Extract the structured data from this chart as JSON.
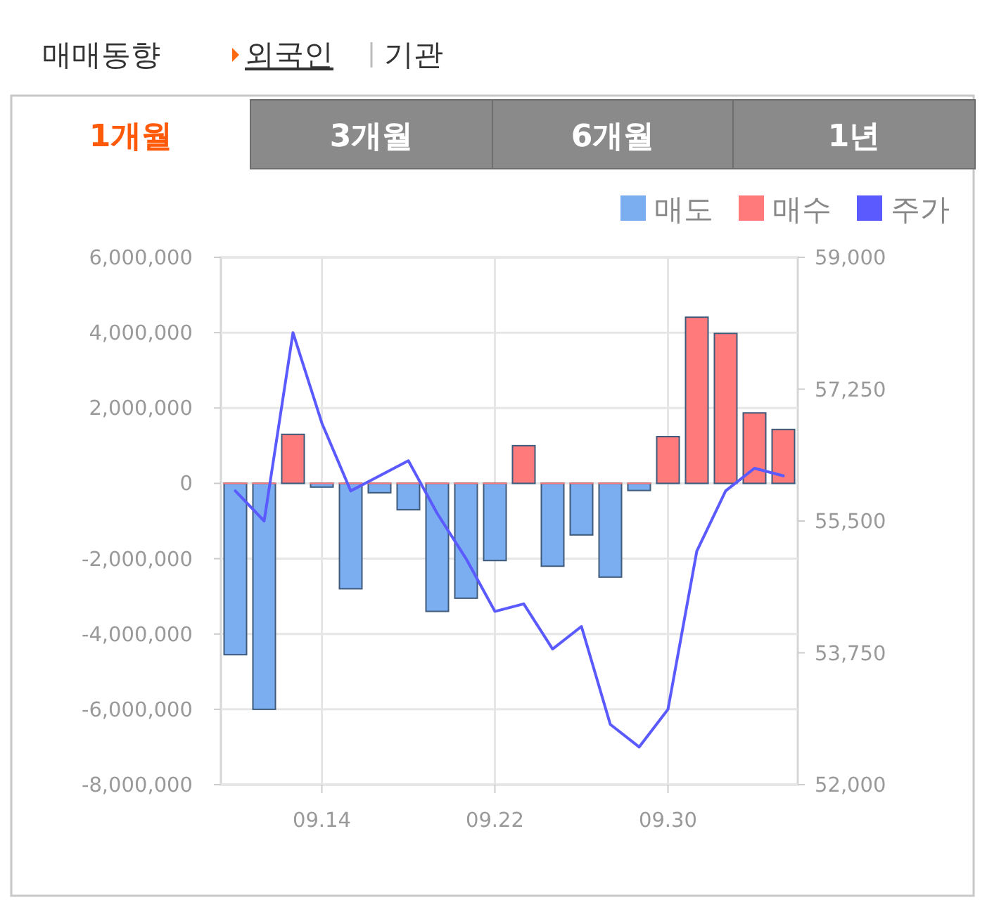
{
  "chart_data": {
    "type": "bar",
    "title": "매매동향",
    "annotations": [
      "외국인",
      "기관",
      "1개월",
      "3개월",
      "6개월",
      "1년"
    ],
    "categories": [
      null,
      null,
      null,
      "09.14",
      null,
      null,
      null,
      null,
      null,
      "09.22",
      null,
      null,
      null,
      null,
      null,
      "09.30",
      null,
      null,
      null,
      null
    ],
    "series": [
      {
        "name": "매도",
        "color": "#7aaef0",
        "values": [
          -4550000,
          -6000000,
          0,
          -100000,
          -2800000,
          -250000,
          -700000,
          -3400000,
          -3050000,
          -2050000,
          0,
          -2200000,
          -1370000,
          -2490000,
          -190000,
          0,
          0,
          0,
          0,
          0
        ]
      },
      {
        "name": "매수",
        "color": "#ff7b7b",
        "values": [
          0,
          0,
          1300000,
          0,
          0,
          0,
          0,
          0,
          0,
          0,
          1000000,
          0,
          0,
          0,
          0,
          1240000,
          4410000,
          3980000,
          1870000,
          1430000
        ]
      },
      {
        "name": "주가",
        "type": "line",
        "axis": "y2",
        "color": "#5a5aff",
        "values": [
          55900,
          55500,
          58000,
          56800,
          55900,
          56100,
          56300,
          55600,
          55000,
          54300,
          54400,
          53800,
          54100,
          52800,
          52500,
          53000,
          55100,
          55900,
          56200,
          56100
        ]
      }
    ],
    "ylim": [
      -8000000,
      6000000
    ],
    "yticks": [
      {
        "value": -8000000,
        "label": "-8,000,000"
      },
      {
        "value": -6000000,
        "label": "-6,000,000"
      },
      {
        "value": -4000000,
        "label": "-4,000,000"
      },
      {
        "value": -2000000,
        "label": "-2,000,000"
      },
      0,
      {
        "value": 2000000,
        "label": "2,000,000"
      },
      {
        "value": 4000000,
        "label": "4,000,000"
      },
      {
        "value": 6000000,
        "label": "6,000,000"
      }
    ],
    "y2lim": [
      52000,
      59000
    ],
    "y2ticks": [
      {
        "value": 52000,
        "label": "52,000"
      },
      {
        "value": 53750,
        "label": "53,750"
      },
      {
        "value": 55500,
        "label": "55,500"
      },
      {
        "value": 57250,
        "label": "57,250"
      },
      {
        "value": 59000,
        "label": "59,000"
      }
    ],
    "grid": true,
    "legend": "top right"
  }
}
